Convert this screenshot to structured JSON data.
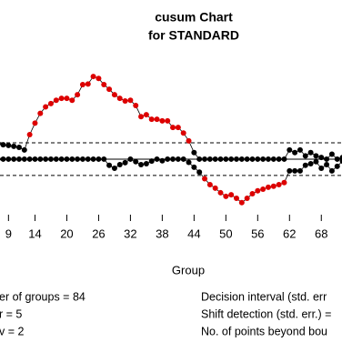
{
  "chart_data": {
    "type": "cusum",
    "title": "cusum Chart",
    "subtitle": "for STANDARD",
    "x_label": "Group",
    "x": [
      7,
      8,
      9,
      10,
      11,
      12,
      13,
      14,
      15,
      16,
      17,
      18,
      19,
      20,
      21,
      22,
      23,
      24,
      25,
      26,
      27,
      28,
      29,
      30,
      31,
      32,
      33,
      34,
      35,
      36,
      37,
      38,
      39,
      40,
      41,
      42,
      43,
      44,
      45,
      46,
      47,
      48,
      49,
      50,
      51,
      52,
      53,
      54,
      55,
      56,
      57,
      58,
      59,
      60,
      61,
      62,
      63,
      64,
      65,
      66,
      67,
      68,
      69,
      70,
      71,
      72
    ],
    "series": [
      {
        "color": "#000000",
        "values": [
          4.8,
          4.4,
          4.2,
          3.9,
          3.6,
          2.8,
          7.5,
          11,
          14,
          16,
          17,
          18,
          18.6,
          18.6,
          18,
          19.7,
          22.8,
          23,
          25.3,
          24.7,
          22.8,
          21.4,
          19.7,
          18.6,
          17.8,
          18,
          16.4,
          13,
          13.6,
          12.2,
          12.2,
          11.7,
          11.7,
          9.7,
          9.7,
          8,
          5.6,
          2,
          0,
          0,
          0,
          0,
          0,
          0,
          0,
          0,
          0,
          0,
          0,
          0,
          0,
          0,
          0,
          0,
          0,
          2.8,
          2,
          2.8,
          1,
          2,
          1,
          0.5,
          0,
          1.5,
          0,
          0.5
        ]
      },
      {
        "color": "#000000",
        "values": [
          0,
          0,
          0,
          0,
          0,
          0,
          0,
          0,
          0,
          0,
          0,
          0,
          0,
          0,
          0,
          0,
          0,
          0,
          0,
          0,
          0,
          -1.9,
          -2.8,
          -1.7,
          -1.1,
          0,
          -0.8,
          -1.7,
          -1.4,
          -0.6,
          0,
          -0.5,
          0,
          0,
          0,
          0,
          -1,
          -2.5,
          -4,
          -6,
          -7.8,
          -8.9,
          -10.3,
          -11.4,
          -10.9,
          -12,
          -13.3,
          -12,
          -10.6,
          -9.7,
          -9.2,
          -8.6,
          -8.3,
          -7.8,
          -7.2,
          -3.6,
          -3.6,
          -3.6,
          -1.9,
          -1.4,
          -0.8,
          -2.8,
          -1.7,
          -3.6,
          -2.2,
          -0.6
        ]
      }
    ],
    "beyond_color": "#dd0000",
    "center": 0,
    "udb": 5,
    "ldb": -5,
    "xlim": [
      7.4,
      71.9
    ],
    "ylim": [
      -17,
      32
    ],
    "xticks": [
      9,
      14,
      20,
      26,
      32,
      38,
      44,
      50,
      56,
      62,
      68
    ],
    "stats_left": [
      "er of groups = 84",
      "r = 5",
      "v = 2"
    ],
    "stats_right": [
      "Decision interval (std. err",
      "Shift detection (std. err.) =",
      "No. of points beyond bou"
    ]
  }
}
